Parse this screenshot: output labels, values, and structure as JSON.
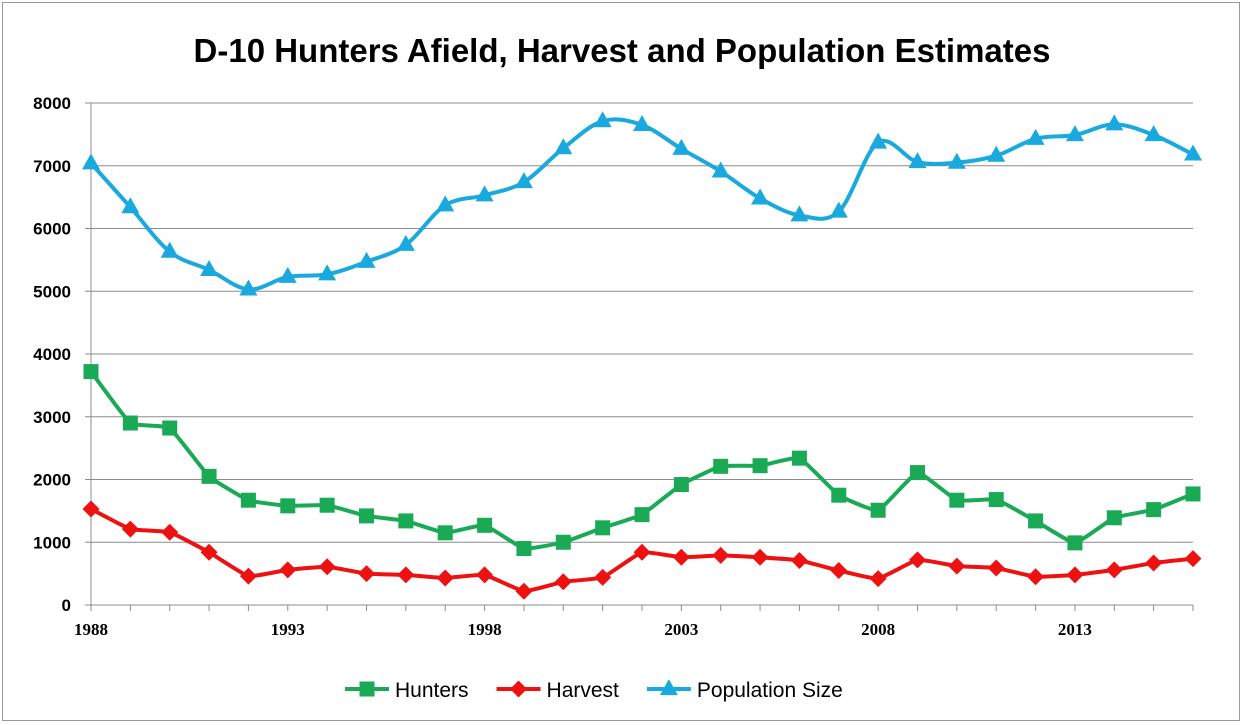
{
  "chart_data": {
    "type": "line",
    "title": "D-10 Hunters Afield, Harvest and Population Estimates",
    "xlabel": "",
    "ylabel": "",
    "x": [
      1988,
      1989,
      1990,
      1991,
      1992,
      1993,
      1994,
      1995,
      1996,
      1997,
      1998,
      1999,
      2000,
      2001,
      2002,
      2003,
      2004,
      2005,
      2006,
      2007,
      2008,
      2009,
      2010,
      2011,
      2012,
      2013,
      2014,
      2015,
      2016
    ],
    "xlim": [
      1988,
      2016
    ],
    "x_tick_labels": [
      "1988",
      "1993",
      "1998",
      "2003",
      "2008",
      "2013"
    ],
    "x_tick_values": [
      1988,
      1993,
      1998,
      2003,
      2008,
      2013
    ],
    "ylim": [
      0,
      8000
    ],
    "y_tick_labels": [
      "0",
      "1000",
      "2000",
      "3000",
      "4000",
      "5000",
      "6000",
      "7000",
      "8000"
    ],
    "y_tick_values": [
      0,
      1000,
      2000,
      3000,
      4000,
      5000,
      6000,
      7000,
      8000
    ],
    "grid": true,
    "legend_position": "bottom",
    "series": [
      {
        "name": "Hunters",
        "color": "#1aaa55",
        "marker": "square",
        "values": [
          3720,
          2900,
          2820,
          2050,
          1670,
          1580,
          1590,
          1420,
          1340,
          1150,
          1270,
          900,
          1000,
          1230,
          1440,
          1920,
          2210,
          2220,
          2340,
          1750,
          1510,
          2110,
          1670,
          1680,
          1340,
          990,
          1390,
          1520,
          1770
        ]
      },
      {
        "name": "Harvest",
        "color": "#ee1111",
        "marker": "diamond",
        "values": [
          1530,
          1210,
          1160,
          840,
          460,
          560,
          610,
          500,
          480,
          430,
          480,
          220,
          370,
          440,
          840,
          760,
          790,
          760,
          710,
          550,
          420,
          720,
          620,
          590,
          450,
          480,
          560,
          670,
          740
        ]
      },
      {
        "name": "Population Size",
        "color": "#1aa9df",
        "marker": "triangle",
        "values": [
          7040,
          6340,
          5630,
          5340,
          5030,
          5230,
          5270,
          5470,
          5740,
          6370,
          6530,
          6740,
          7280,
          7710,
          7650,
          7270,
          6910,
          6480,
          6210,
          6270,
          7370,
          7060,
          7050,
          7160,
          7430,
          7490,
          7660,
          7490,
          7180
        ]
      }
    ]
  }
}
